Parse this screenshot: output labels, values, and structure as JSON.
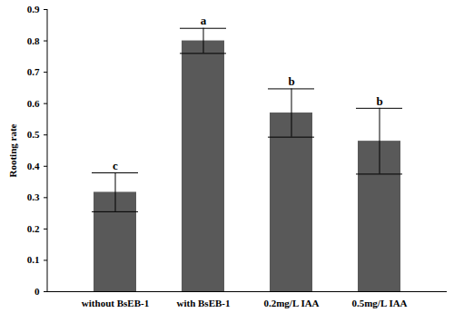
{
  "chart_data": {
    "type": "bar",
    "ylabel": "Rooting rate",
    "categories": [
      "without BsEB-1",
      "with BsEB-1",
      "0.2mg/L IAA",
      "0.5mg/L IAA"
    ],
    "values": [
      0.317,
      0.8,
      0.57,
      0.48
    ],
    "error": [
      0.062,
      0.04,
      0.077,
      0.105
    ],
    "significance": [
      "c",
      "a",
      "b",
      "b"
    ],
    "color": "#595959",
    "ylim": [
      0,
      0.9
    ],
    "yticks": [
      0,
      0.1,
      0.2,
      0.3,
      0.4,
      0.5,
      0.6,
      0.7,
      0.8,
      0.9
    ],
    "grid": false
  }
}
